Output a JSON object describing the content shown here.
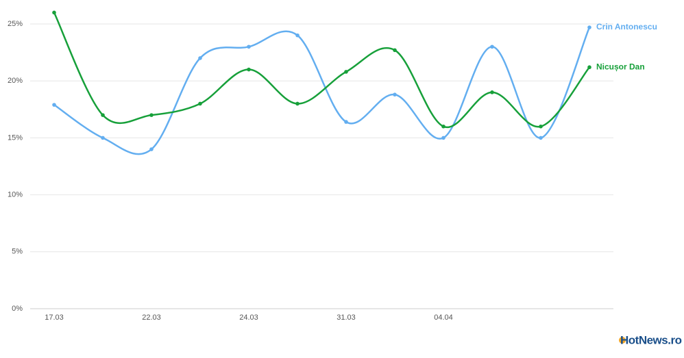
{
  "chart_data": {
    "type": "line",
    "categories": [
      "17.03",
      null,
      "22.03",
      null,
      "24.03",
      null,
      "31.03",
      null,
      "04.04",
      null,
      null,
      null
    ],
    "series": [
      {
        "name": "Crin Antonescu",
        "color": "#63aef0",
        "values": [
          17.9,
          15.0,
          14.0,
          22.0,
          23.0,
          24.0,
          16.4,
          18.8,
          15.0,
          23.0,
          15.0,
          24.7
        ]
      },
      {
        "name": "Nicușor Dan",
        "color": "#17a03a",
        "values": [
          26.0,
          17.0,
          17.0,
          18.0,
          21.0,
          18.0,
          20.8,
          22.7,
          16.0,
          19.0,
          16.0,
          21.2
        ]
      }
    ],
    "ylim": [
      0,
      25
    ],
    "yticks": [
      {
        "value": 0,
        "label": "0%"
      },
      {
        "value": 5,
        "label": "5%"
      },
      {
        "value": 10,
        "label": "10%"
      },
      {
        "value": 15,
        "label": "15%"
      },
      {
        "value": 20,
        "label": "20%"
      },
      {
        "value": 25,
        "label": "25%"
      }
    ],
    "grid": true,
    "logo": "HotNews.ro"
  }
}
